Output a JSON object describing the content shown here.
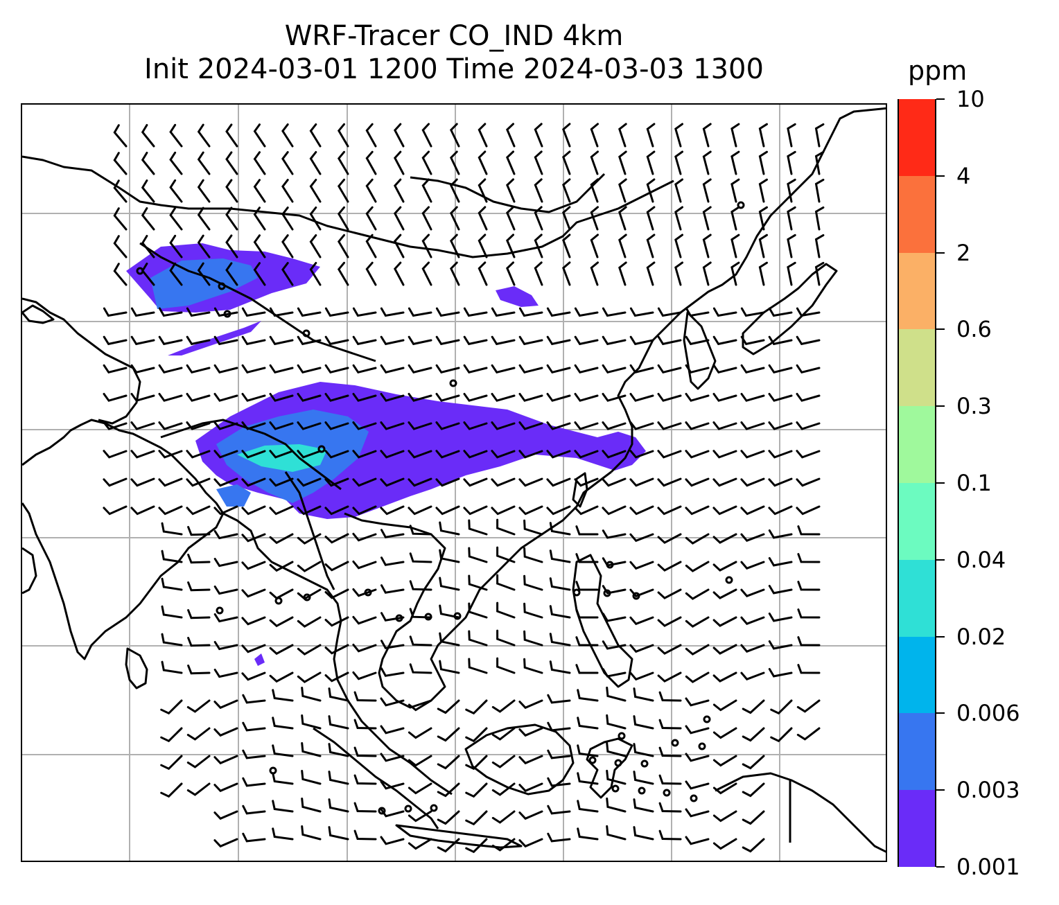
{
  "title": {
    "line1": "WRF-Tracer CO_IND 4km",
    "line2": "Init 2024-03-01 1200 Time 2024-03-03 1300"
  },
  "colorbar": {
    "unit": "ppm",
    "levels": [
      "0.001",
      "0.003",
      "0.006",
      "0.02",
      "0.04",
      "0.1",
      "0.3",
      "0.6",
      "2",
      "4",
      "10"
    ],
    "colors": [
      "#6a2cf8",
      "#3776f0",
      "#00b4ec",
      "#2fe0d6",
      "#6cfbc0",
      "#9ff99c",
      "#cfe08a",
      "#fbb066",
      "#fb713c",
      "#ff2a17"
    ]
  },
  "map": {
    "gridlines": true,
    "coastline_color": "#000000",
    "grid_color": "#b0b0b0",
    "plume_colors": [
      "#6a2cf8",
      "#3776f0",
      "#2fe0d6"
    ],
    "wind_barbs": true
  }
}
